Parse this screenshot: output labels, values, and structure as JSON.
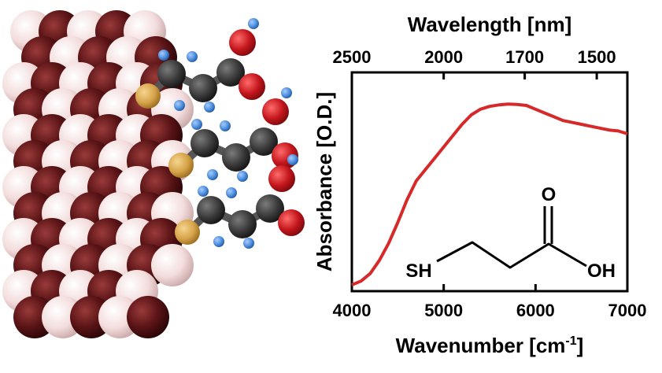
{
  "colors": {
    "curve": "#d62a2a",
    "dark_atom": "#5a1416",
    "light_atom": "#f3dcdc",
    "carbon": "#3a3a3a",
    "oxygen": "#c4161c",
    "hydrogen": "#4f8fdc",
    "sulfur": "#d6a349"
  },
  "chart_data": {
    "type": "line",
    "xlabel_main": "Wavenumber [cm",
    "xlabel_sup": "-1",
    "xlabel_end": "]",
    "x2label": "Wavelength [nm]",
    "ylabel": "Absorbance [O.D.]",
    "xlim": [
      4000,
      7000
    ],
    "x_ticks": [
      "4000",
      "5000",
      "6000",
      "7000"
    ],
    "x2_ticks": [
      {
        "wavelength_nm": 2500,
        "label": "2500"
      },
      {
        "wavelength_nm": 2000,
        "label": "2000"
      },
      {
        "wavelength_nm": 1700,
        "label": "1700"
      },
      {
        "wavelength_nm": 1500,
        "label": "1500"
      }
    ],
    "y_ticks_shown": false,
    "grid": false,
    "legend": false,
    "series": [
      {
        "x": [
          4000,
          4100,
          4200,
          4300,
          4400,
          4500,
          4600,
          4700,
          4800,
          4900,
          5000,
          5100,
          5200,
          5300,
          5400,
          5500,
          5600,
          5700,
          5800,
          5900,
          6000,
          6100,
          6200,
          6300,
          6400,
          6500,
          6600,
          6700,
          6800,
          6900,
          7000
        ],
        "y": [
          0.0,
          0.02,
          0.06,
          0.13,
          0.22,
          0.33,
          0.45,
          0.55,
          0.61,
          0.67,
          0.73,
          0.79,
          0.85,
          0.9,
          0.93,
          0.945,
          0.953,
          0.957,
          0.955,
          0.95,
          0.93,
          0.91,
          0.89,
          0.87,
          0.86,
          0.85,
          0.84,
          0.83,
          0.82,
          0.815,
          0.8
        ]
      }
    ]
  },
  "molecule": {
    "left_label": "SH",
    "oxygen_label": "O",
    "right_label": "OH"
  }
}
